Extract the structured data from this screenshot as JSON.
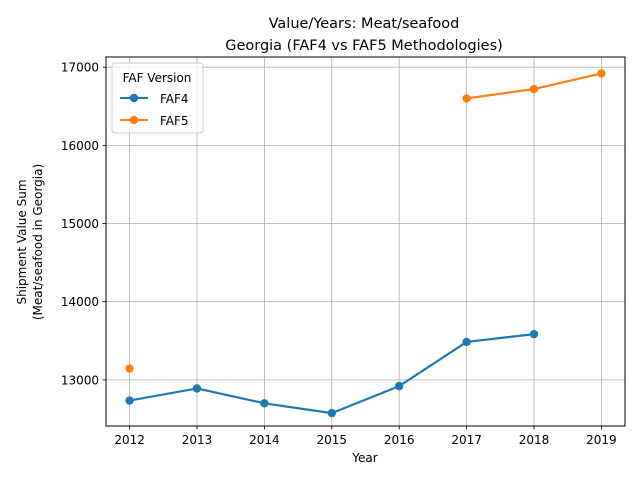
{
  "chart_data": {
    "type": "line",
    "title": "Value/Years: Meat/seafood",
    "subtitle": "Georgia (FAF4 vs FAF5 Methodologies)",
    "xlabel": "Year",
    "ylabel": "Shipment Value Sum",
    "ylabel2": "(Meat/seafood in Georgia)",
    "x_ticks": [
      "2012",
      "2013",
      "2014",
      "2015",
      "2016",
      "2017",
      "2018",
      "2019"
    ],
    "y_ticks": [
      "13000",
      "14000",
      "15000",
      "16000",
      "17000"
    ],
    "xlim": [
      2011.65,
      2019.35
    ],
    "ylim": [
      12410,
      17130
    ],
    "grid": true,
    "legend_title": "FAF Version",
    "legend_position": "top-left",
    "series": [
      {
        "name": "FAF4",
        "color": "#1f77b4",
        "points": [
          {
            "x": 2012,
            "y": 12735
          },
          {
            "x": 2013,
            "y": 12890
          },
          {
            "x": 2014,
            "y": 12700
          },
          {
            "x": 2015,
            "y": 12575
          },
          {
            "x": 2016,
            "y": 12920
          },
          {
            "x": 2017,
            "y": 13485
          },
          {
            "x": 2018,
            "y": 13585
          }
        ],
        "segments": [
          [
            0,
            1,
            2,
            3,
            4,
            5,
            6
          ]
        ]
      },
      {
        "name": "FAF5",
        "color": "#ff7f0e",
        "points": [
          {
            "x": 2012,
            "y": 13145
          },
          {
            "x": 2017,
            "y": 16600
          },
          {
            "x": 2018,
            "y": 16720
          },
          {
            "x": 2019,
            "y": 16920
          }
        ],
        "segments": [
          [
            1,
            2,
            3
          ]
        ]
      }
    ]
  }
}
